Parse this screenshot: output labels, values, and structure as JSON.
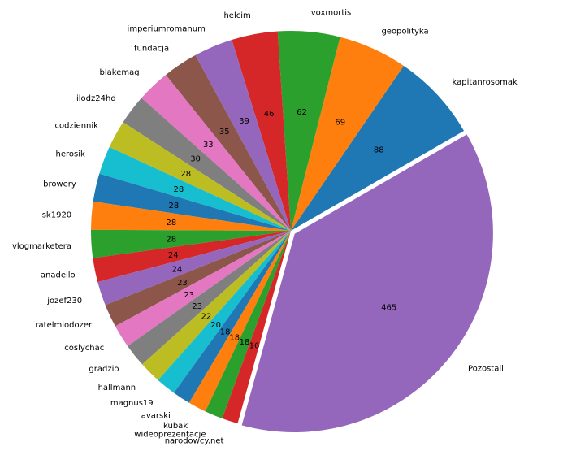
{
  "chart_data": {
    "type": "pie",
    "title": "",
    "start_angle_deg": 30,
    "direction": "counterclockwise",
    "exploded": [
      "Pozostali"
    ],
    "categories": [
      "kapitanrosomak",
      "geopolityka",
      "voxmortis",
      "helcim",
      "imperiumromanum",
      "fundacja",
      "blakemag",
      "ilodz24hd",
      "codziennik",
      "herosik",
      "browery",
      "sk1920",
      "vlogmarketera",
      "anadello",
      "jozef230",
      "ratelmiodozer",
      "coslychac",
      "gradzio",
      "hallmann",
      "magnus19",
      "avarski",
      "kubak",
      "wideoprezentacje",
      "narodowcy.net",
      "Pozostali"
    ],
    "values": [
      88,
      69,
      62,
      46,
      39,
      35,
      33,
      30,
      28,
      28,
      28,
      28,
      28,
      24,
      24,
      23,
      23,
      23,
      22,
      20,
      18,
      18,
      18,
      16,
      465
    ],
    "value_labels": [
      "88",
      "69",
      "62",
      "46",
      "39",
      "35",
      "33",
      "30",
      "28",
      "28",
      "28",
      "28",
      "28",
      "24",
      "24",
      "23",
      "23",
      "23",
      "22",
      "20",
      "18",
      "18",
      "18",
      "16",
      "465"
    ],
    "colors": [
      "#1f77b4",
      "#ff7f0e",
      "#2ca02c",
      "#d62728",
      "#9467bd",
      "#8c564b",
      "#e377c2",
      "#7f7f7f",
      "#bcbd22",
      "#17becf"
    ]
  }
}
